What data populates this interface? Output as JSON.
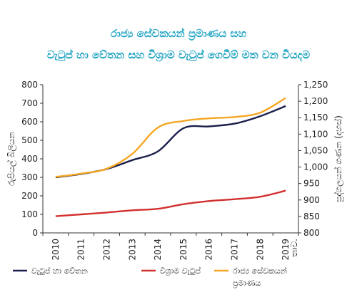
{
  "chart_data": {
    "type": "line",
    "title_line1": "රාජ්‍ය සේවකයන් ප්‍රමාණය    සහ",
    "title_line2": "වැටුප් හා වේතන සහ විශ්‍රාම වැටුප් ගෙවීම් මත වන වියදම",
    "ylabel_left": "රුපියල් බිලියන",
    "ylabel_right": "පුද්ගලයන් ගණන (දහස්)",
    "x": [
      "2010",
      "2011",
      "2012",
      "2013",
      "2014",
      "2015",
      "2016",
      "2017",
      "2018",
      "2019"
    ],
    "x_suffix_last": "තාව.",
    "ylim_left": [
      0,
      800
    ],
    "yticks_left": [
      "0",
      "100",
      "200",
      "300",
      "400",
      "500",
      "600",
      "700",
      "800"
    ],
    "ylim_right": [
      800,
      1250
    ],
    "yticks_right": [
      "800",
      "850",
      "900",
      "950",
      "1,000",
      "1,050",
      "1,100",
      "1,150",
      "1,200",
      "1,250"
    ],
    "series": [
      {
        "name": "වැටුප් හා වේතන",
        "axis": "left",
        "color": "#1a1f4b",
        "values": [
          300,
          318,
          345,
          393,
          440,
          565,
          575,
          590,
          630,
          685
        ]
      },
      {
        "name": "විශ්‍රාම වැටුප්",
        "axis": "left",
        "color": "#d32f2f",
        "values": [
          90,
          100,
          110,
          122,
          130,
          155,
          172,
          182,
          195,
          228
        ]
      },
      {
        "name": "රාජ්‍ය සේවකයන් ප්‍රමාණය",
        "axis": "right",
        "color": "#f5a623",
        "values": [
          970,
          980,
          995,
          1040,
          1120,
          1140,
          1148,
          1152,
          1165,
          1210
        ]
      }
    ],
    "legend_position": "bottom",
    "grid": false
  }
}
